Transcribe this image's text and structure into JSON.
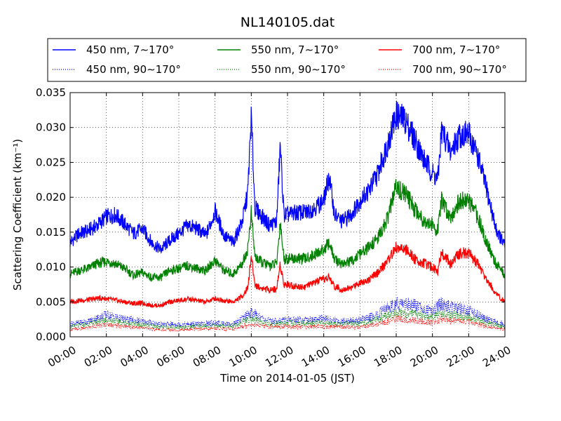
{
  "chart_data": {
    "type": "line",
    "title": "NL140105.dat",
    "xlabel": "Time on 2014-01-05 (JST)",
    "ylabel": "Scattering Coefficient (km⁻¹)",
    "xlim": [
      0,
      24
    ],
    "ylim": [
      0,
      0.035
    ],
    "x_ticks": [
      "00:00",
      "02:00",
      "04:00",
      "06:00",
      "08:00",
      "10:00",
      "12:00",
      "14:00",
      "16:00",
      "18:00",
      "20:00",
      "22:00",
      "24:00"
    ],
    "y_ticks": [
      "0.000",
      "0.005",
      "0.010",
      "0.015",
      "0.020",
      "0.025",
      "0.030",
      "0.035"
    ],
    "grid": true,
    "legend_position": "top",
    "series": [
      {
        "name": "450 nm, 7∼170°",
        "color": "#0000ff",
        "style": "solid",
        "x": [
          0,
          0.5,
          1,
          1.5,
          2,
          2.5,
          3,
          3.5,
          4,
          4.5,
          5,
          5.5,
          6,
          6.5,
          7,
          7.5,
          8,
          8.5,
          9,
          9.5,
          9.8,
          10.0,
          10.2,
          10.5,
          11,
          11.4,
          11.6,
          11.8,
          12,
          12.5,
          13,
          13.5,
          14,
          14.3,
          14.6,
          15,
          15.5,
          16,
          16.5,
          17,
          17.5,
          18,
          18.5,
          19,
          19.5,
          20,
          20.3,
          20.5,
          20.7,
          21,
          21.5,
          22,
          22.5,
          23,
          23.5,
          24
        ],
        "y": [
          0.0135,
          0.0148,
          0.0152,
          0.016,
          0.0172,
          0.0175,
          0.0162,
          0.0148,
          0.0155,
          0.0135,
          0.0125,
          0.0138,
          0.0148,
          0.016,
          0.0155,
          0.0145,
          0.018,
          0.0145,
          0.0135,
          0.0165,
          0.0205,
          0.0315,
          0.0185,
          0.0175,
          0.016,
          0.0165,
          0.0275,
          0.0175,
          0.0175,
          0.0178,
          0.0178,
          0.0185,
          0.0195,
          0.023,
          0.0175,
          0.0165,
          0.0175,
          0.0195,
          0.021,
          0.0235,
          0.0275,
          0.0318,
          0.031,
          0.0285,
          0.0255,
          0.0235,
          0.0225,
          0.0295,
          0.0285,
          0.0265,
          0.029,
          0.029,
          0.026,
          0.021,
          0.0155,
          0.013
        ]
      },
      {
        "name": "550 nm, 7∼170°",
        "color": "#008000",
        "style": "solid",
        "x": [
          0,
          0.5,
          1,
          1.5,
          2,
          2.5,
          3,
          3.5,
          4,
          4.5,
          5,
          5.5,
          6,
          6.5,
          7,
          7.5,
          8,
          8.5,
          9,
          9.5,
          9.8,
          10.0,
          10.2,
          10.5,
          11,
          11.4,
          11.6,
          11.8,
          12,
          12.5,
          13,
          13.5,
          14,
          14.3,
          14.6,
          15,
          15.5,
          16,
          16.5,
          17,
          17.5,
          18,
          18.5,
          19,
          19.5,
          20,
          20.3,
          20.5,
          20.7,
          21,
          21.5,
          22,
          22.5,
          23,
          23.5,
          24
        ],
        "y": [
          0.009,
          0.0095,
          0.0098,
          0.0105,
          0.0108,
          0.0105,
          0.0098,
          0.0088,
          0.0092,
          0.0085,
          0.0085,
          0.0095,
          0.0098,
          0.0102,
          0.0098,
          0.0095,
          0.011,
          0.0095,
          0.009,
          0.0105,
          0.0125,
          0.0178,
          0.0115,
          0.0108,
          0.0102,
          0.0105,
          0.0165,
          0.0112,
          0.0112,
          0.0112,
          0.0112,
          0.0118,
          0.0125,
          0.0135,
          0.011,
          0.0105,
          0.0108,
          0.0118,
          0.0128,
          0.0142,
          0.0168,
          0.0215,
          0.0205,
          0.0185,
          0.0168,
          0.016,
          0.0152,
          0.0195,
          0.0185,
          0.0172,
          0.0195,
          0.0195,
          0.0172,
          0.0135,
          0.0105,
          0.0088
        ]
      },
      {
        "name": "700 nm, 7∼170°",
        "color": "#ff0000",
        "style": "solid",
        "x": [
          0,
          0.5,
          1,
          1.5,
          2,
          2.5,
          3,
          3.5,
          4,
          4.5,
          5,
          5.5,
          6,
          6.5,
          7,
          7.5,
          8,
          8.5,
          9,
          9.5,
          9.8,
          10.0,
          10.2,
          10.5,
          11,
          11.4,
          11.6,
          11.8,
          12,
          12.5,
          13,
          13.5,
          14,
          14.3,
          14.6,
          15,
          15.5,
          16,
          16.5,
          17,
          17.5,
          18,
          18.5,
          19,
          19.5,
          20,
          20.3,
          20.5,
          20.7,
          21,
          21.5,
          22,
          22.5,
          23,
          23.5,
          24
        ],
        "y": [
          0.005,
          0.0052,
          0.0053,
          0.0055,
          0.0055,
          0.0052,
          0.005,
          0.0048,
          0.0048,
          0.0045,
          0.0045,
          0.005,
          0.0052,
          0.0054,
          0.0052,
          0.005,
          0.0055,
          0.0052,
          0.005,
          0.0058,
          0.007,
          0.0115,
          0.0075,
          0.007,
          0.0068,
          0.0068,
          0.0105,
          0.0075,
          0.0075,
          0.0072,
          0.0072,
          0.0078,
          0.0082,
          0.0085,
          0.0072,
          0.0068,
          0.007,
          0.0078,
          0.0082,
          0.0092,
          0.0108,
          0.0128,
          0.0125,
          0.0112,
          0.0105,
          0.01,
          0.0095,
          0.0122,
          0.0115,
          0.0105,
          0.012,
          0.012,
          0.0105,
          0.0082,
          0.0062,
          0.005
        ]
      },
      {
        "name": "450 nm, 90∼170°",
        "color": "#0000ff",
        "style": "dotted",
        "x": [
          0,
          1,
          2,
          3,
          4,
          5,
          6,
          7,
          8,
          9,
          10,
          11,
          12,
          13,
          14,
          15,
          16,
          17,
          18,
          19,
          20,
          20.5,
          21,
          22,
          23,
          24
        ],
        "y": [
          0.0018,
          0.0022,
          0.0032,
          0.0025,
          0.0022,
          0.0018,
          0.0018,
          0.0018,
          0.002,
          0.0018,
          0.0035,
          0.0022,
          0.0025,
          0.0024,
          0.0026,
          0.0022,
          0.0024,
          0.0032,
          0.0048,
          0.0045,
          0.0038,
          0.0048,
          0.0042,
          0.0038,
          0.0025,
          0.0018
        ]
      },
      {
        "name": "550 nm, 90∼170°",
        "color": "#008000",
        "style": "dotted",
        "x": [
          0,
          1,
          2,
          3,
          4,
          5,
          6,
          7,
          8,
          9,
          10,
          11,
          12,
          13,
          14,
          15,
          16,
          17,
          18,
          19,
          20,
          20.5,
          21,
          22,
          23,
          24
        ],
        "y": [
          0.0014,
          0.0018,
          0.0025,
          0.002,
          0.0017,
          0.0014,
          0.0014,
          0.0015,
          0.0016,
          0.0015,
          0.0026,
          0.0018,
          0.002,
          0.0019,
          0.002,
          0.0018,
          0.0019,
          0.0025,
          0.0035,
          0.0032,
          0.0028,
          0.0034,
          0.0031,
          0.0028,
          0.002,
          0.0014
        ]
      },
      {
        "name": "700 nm, 90∼170°",
        "color": "#ff0000",
        "style": "dotted",
        "x": [
          0,
          1,
          2,
          3,
          4,
          5,
          6,
          7,
          8,
          9,
          10,
          11,
          12,
          13,
          14,
          15,
          16,
          17,
          18,
          19,
          20,
          20.5,
          21,
          22,
          23,
          24
        ],
        "y": [
          0.001,
          0.0013,
          0.0018,
          0.0015,
          0.0013,
          0.001,
          0.001,
          0.0011,
          0.0012,
          0.0011,
          0.0018,
          0.0014,
          0.0015,
          0.0014,
          0.0015,
          0.0014,
          0.0014,
          0.0018,
          0.0026,
          0.0024,
          0.002,
          0.0025,
          0.0023,
          0.0021,
          0.0015,
          0.0011
        ]
      }
    ]
  }
}
